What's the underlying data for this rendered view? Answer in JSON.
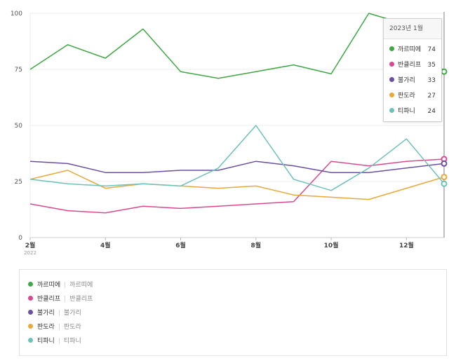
{
  "chart_data": {
    "type": "line",
    "x": [
      "2022-02",
      "2022-03",
      "2022-04",
      "2022-05",
      "2022-06",
      "2022-07",
      "2022-08",
      "2022-09",
      "2022-10",
      "2022-11",
      "2022-12",
      "2023-01"
    ],
    "x_tick_labels": [
      {
        "x": "2022-02",
        "label": "2월",
        "sub": "2022"
      },
      {
        "x": "2022-04",
        "label": "4월",
        "sub": ""
      },
      {
        "x": "2022-06",
        "label": "6월",
        "sub": ""
      },
      {
        "x": "2022-08",
        "label": "8월",
        "sub": ""
      },
      {
        "x": "2022-10",
        "label": "10월",
        "sub": ""
      },
      {
        "x": "2022-12",
        "label": "12월",
        "sub": ""
      }
    ],
    "ylim": [
      0,
      100
    ],
    "yticks": [
      0,
      25,
      50,
      75,
      100
    ],
    "grid": "y",
    "series": [
      {
        "name": "까르띠에",
        "color": "#3ea843",
        "values": [
          75,
          86,
          80,
          93,
          74,
          71,
          74,
          77,
          73,
          100,
          95,
          74
        ]
      },
      {
        "name": "반클리프",
        "color": "#d9498f",
        "values": [
          15,
          12,
          11,
          14,
          13,
          14,
          15,
          16,
          34,
          32,
          34,
          35
        ]
      },
      {
        "name": "불가리",
        "color": "#6a4fa3",
        "values": [
          34,
          33,
          29,
          29,
          30,
          30,
          34,
          32,
          29,
          29,
          31,
          33
        ]
      },
      {
        "name": "판도라",
        "color": "#e8a83a",
        "values": [
          26,
          30,
          22,
          24,
          23,
          22,
          23,
          19,
          18,
          17,
          22,
          27
        ]
      },
      {
        "name": "티파니",
        "color": "#6cc2b8",
        "values": [
          26,
          24,
          23,
          24,
          23,
          31,
          50,
          26,
          21,
          31,
          44,
          24
        ]
      }
    ],
    "hover_index": 11
  },
  "tooltip": {
    "title": "2023년 1월",
    "rows": [
      {
        "name": "까르띠에",
        "value": "74",
        "color": "#3ea843"
      },
      {
        "name": "반클리프",
        "value": "35",
        "color": "#d9498f"
      },
      {
        "name": "불가리",
        "value": "33",
        "color": "#6a4fa3"
      },
      {
        "name": "판도라",
        "value": "27",
        "color": "#e8a83a"
      },
      {
        "name": "티파니",
        "value": "24",
        "color": "#6cc2b8"
      }
    ]
  },
  "legend": {
    "items": [
      {
        "name": "까르띠에",
        "alias": "까르띠에",
        "color": "#3ea843"
      },
      {
        "name": "반클리프",
        "alias": "반클리프",
        "color": "#d9498f"
      },
      {
        "name": "불가리",
        "alias": "불가리",
        "color": "#6a4fa3"
      },
      {
        "name": "판도라",
        "alias": "판도라",
        "color": "#e8a83a"
      },
      {
        "name": "티파니",
        "alias": "티파니",
        "color": "#6cc2b8"
      }
    ]
  }
}
